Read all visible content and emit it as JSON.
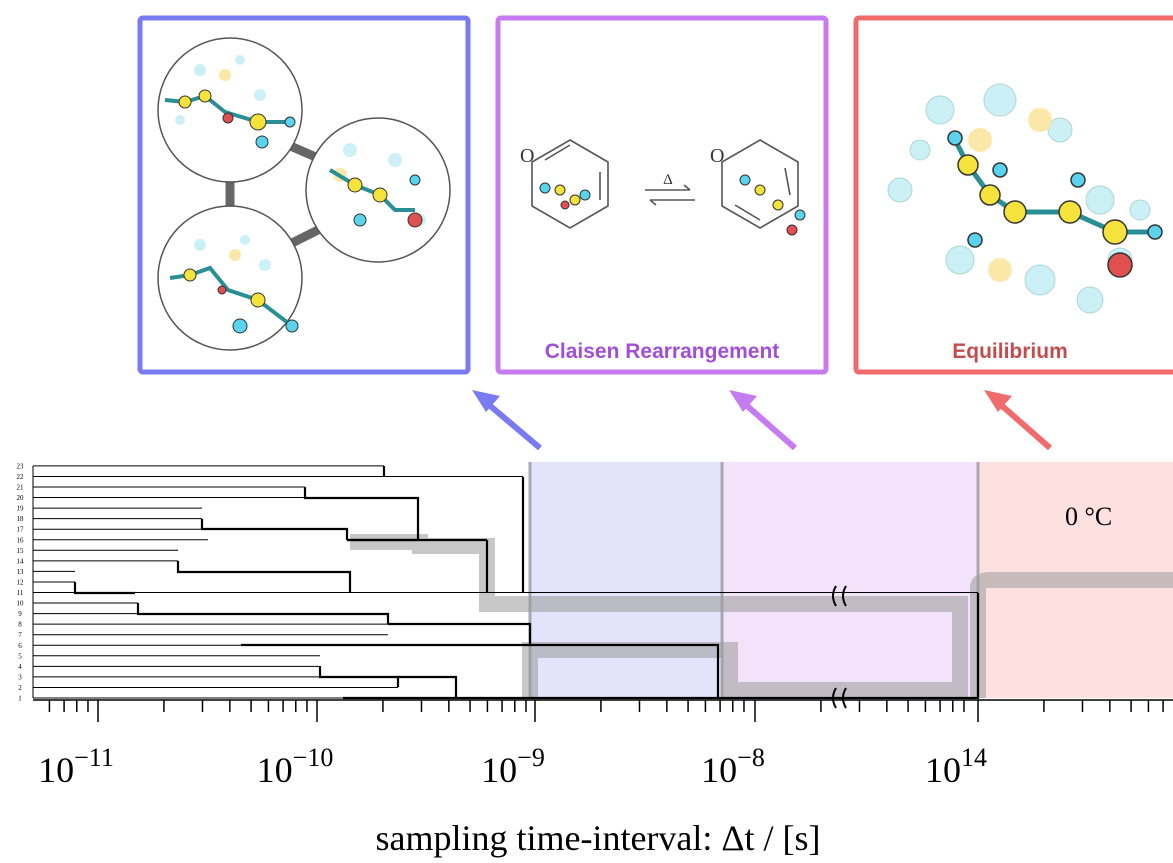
{
  "panels": [
    {
      "label": null
    },
    {
      "label": "Claisen Rearrangement",
      "reaction": {
        "atom": "O",
        "condition": "Δ"
      }
    },
    {
      "label": "Equilibrium"
    }
  ],
  "dendrogram": {
    "leaves": [
      "1",
      "2",
      "3",
      "4",
      "5",
      "6",
      "7",
      "8",
      "9",
      "10",
      "11",
      "12",
      "13",
      "14",
      "15",
      "16",
      "17",
      "18",
      "19",
      "20",
      "21",
      "22",
      "23"
    ],
    "temperature": "0 °C"
  },
  "x_axis": {
    "ticks": [
      {
        "base": "10",
        "exp": "−11"
      },
      {
        "base": "10",
        "exp": "−10"
      },
      {
        "base": "10",
        "exp": "−9"
      },
      {
        "base": "10",
        "exp": "−8"
      },
      {
        "base": "10",
        "exp": "14"
      }
    ],
    "label": "sampling time-interval: Δt / [s]"
  }
}
